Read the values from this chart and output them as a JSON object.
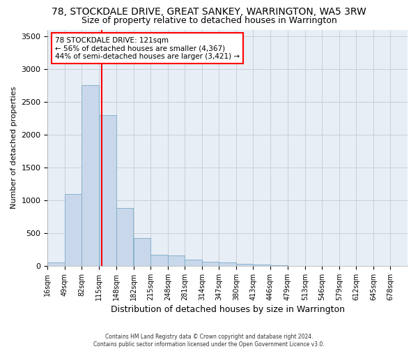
{
  "title": "78, STOCKDALE DRIVE, GREAT SANKEY, WARRINGTON, WA5 3RW",
  "subtitle": "Size of property relative to detached houses in Warrington",
  "xlabel": "Distribution of detached houses by size in Warrington",
  "ylabel": "Number of detached properties",
  "footer_line1": "Contains HM Land Registry data © Crown copyright and database right 2024.",
  "footer_line2": "Contains public sector information licensed under the Open Government Licence v3.0.",
  "bin_edges": [
    16,
    49,
    82,
    115,
    148,
    182,
    215,
    248,
    281,
    314,
    347,
    380,
    413,
    446,
    479,
    513,
    546,
    579,
    612,
    645,
    678,
    711
  ],
  "bin_labels": [
    "16sqm",
    "49sqm",
    "82sqm",
    "115sqm",
    "148sqm",
    "182sqm",
    "215sqm",
    "248sqm",
    "281sqm",
    "314sqm",
    "347sqm",
    "380sqm",
    "413sqm",
    "446sqm",
    "479sqm",
    "513sqm",
    "546sqm",
    "579sqm",
    "612sqm",
    "645sqm",
    "678sqm"
  ],
  "bar_heights": [
    50,
    1100,
    2750,
    2300,
    880,
    430,
    170,
    160,
    90,
    60,
    50,
    30,
    25,
    5,
    0,
    0,
    0,
    0,
    0,
    0,
    0
  ],
  "bar_color": "#c8d8ea",
  "bar_edge_color": "#7aaac8",
  "ref_line_x": 121,
  "ref_line_color": "red",
  "annotation_title": "78 STOCKDALE DRIVE: 121sqm",
  "annotation_line1": "← 56% of detached houses are smaller (4,367)",
  "annotation_line2": "44% of semi-detached houses are larger (3,421) →",
  "annotation_box_color": "white",
  "annotation_box_edge_color": "red",
  "ylim": [
    0,
    3600
  ],
  "yticks": [
    0,
    500,
    1000,
    1500,
    2000,
    2500,
    3000,
    3500
  ],
  "grid_color": "#c8d0d8",
  "bg_color": "#e8eef5",
  "title_fontsize": 10,
  "subtitle_fontsize": 9,
  "xlabel_fontsize": 9,
  "ylabel_fontsize": 8
}
